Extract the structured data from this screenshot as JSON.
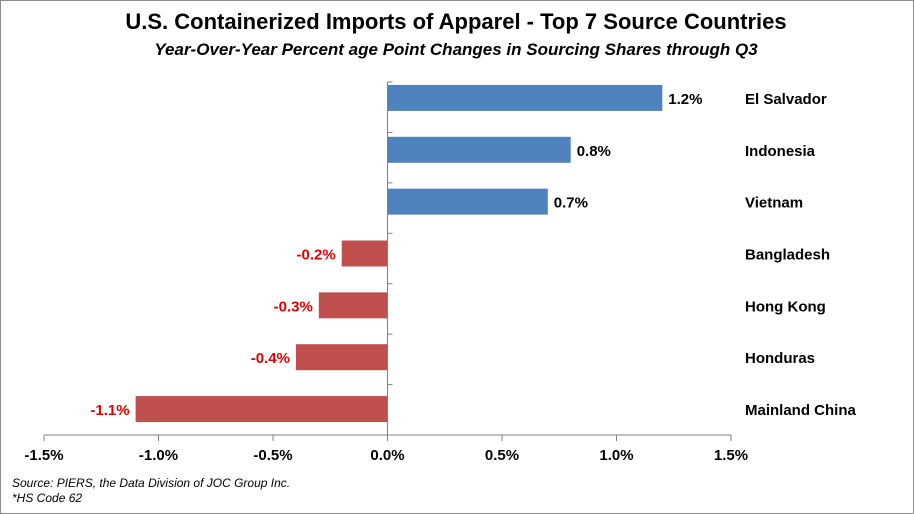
{
  "chart_data": {
    "type": "bar",
    "orientation": "horizontal",
    "title": "U.S. Containerized Imports of Apparel - Top 7 Source Countries",
    "subtitle": "Year-Over-Year Percent age Point Changes in Sourcing Shares through Q3",
    "categories": [
      "El Salvador",
      "Indonesia",
      "Vietnam",
      "Bangladesh",
      "Hong Kong",
      "Honduras",
      "Mainland China"
    ],
    "values": [
      1.2,
      0.8,
      0.7,
      -0.2,
      -0.3,
      -0.4,
      -1.1
    ],
    "value_labels": [
      "1.2%",
      "0.8%",
      "0.7%",
      "-0.2%",
      "-0.3%",
      "-0.4%",
      "-1.1%"
    ],
    "xlim": [
      -1.5,
      1.5
    ],
    "x_ticks": [
      -1.5,
      -1.0,
      -0.5,
      0.0,
      0.5,
      1.0,
      1.5
    ],
    "x_tick_labels": [
      "-1.5%",
      "-1.0%",
      "-0.5%",
      "0.0%",
      "0.5%",
      "1.0%",
      "1.5%"
    ],
    "grid": false,
    "legend": "none",
    "colors": {
      "positive_bar": "#4f81bd",
      "negative_bar": "#c0504d",
      "positive_label": "#000000",
      "negative_label": "#e00000"
    }
  },
  "footnotes": {
    "source": "Source: PIERS, the Data Division of JOC Group Inc.",
    "note": "*HS Code 62"
  }
}
